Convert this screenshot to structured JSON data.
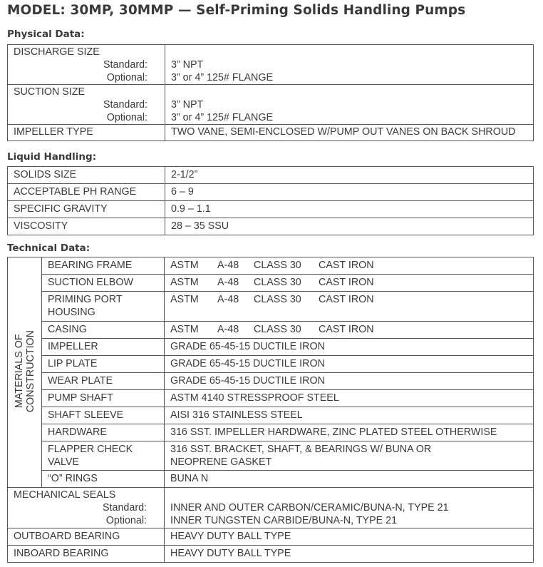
{
  "title": "MODEL:  30MP, 30MMP — Self-Priming Solids Handling Pumps",
  "physical": {
    "heading": "Physical Data:",
    "discharge": {
      "label": "DISCHARGE SIZE",
      "standard_label": "Standard:",
      "optional_label": "Optional:",
      "standard": "3” NPT",
      "optional": "3” or 4” 125# FLANGE"
    },
    "suction": {
      "label": "SUCTION SIZE",
      "standard_label": "Standard:",
      "optional_label": "Optional:",
      "standard": "3” NPT",
      "optional": "3” or 4” 125# FLANGE"
    },
    "impeller": {
      "label": "IMPELLER TYPE",
      "value": "TWO VANE, SEMI-ENCLOSED W/PUMP OUT VANES ON BACK SHROUD"
    }
  },
  "liquid": {
    "heading": "Liquid Handling:",
    "rows": [
      {
        "label": "SOLIDS SIZE",
        "value": "2-1/2”"
      },
      {
        "label": "ACCEPTABLE PH RANGE",
        "value": "6 – 9"
      },
      {
        "label": "SPECIFIC GRAVITY",
        "value": "0.9 – 1.1"
      },
      {
        "label": "VISCOSITY",
        "value": "28 – 35 SSU"
      }
    ]
  },
  "technical": {
    "heading": "Technical Data:",
    "materials_label_1": "MATERIALS OF",
    "materials_label_2": "CONSTRUCTION",
    "astm_rows": [
      {
        "label": "BEARING FRAME",
        "std": "ASTM",
        "spec": "A-48",
        "cls": "CLASS 30",
        "mat": "CAST IRON"
      },
      {
        "label": "SUCTION ELBOW",
        "std": "ASTM",
        "spec": "A-48",
        "cls": "CLASS 30",
        "mat": "CAST IRON"
      },
      {
        "label": "PRIMING PORT HOUSING",
        "std": "ASTM",
        "spec": "A-48",
        "cls": "CLASS 30",
        "mat": "CAST IRON"
      },
      {
        "label": "CASING",
        "std": "ASTM",
        "spec": "A-48",
        "cls": "CLASS 30",
        "mat": "CAST IRON"
      }
    ],
    "rows": [
      {
        "label": "IMPELLER",
        "value": "GRADE 65-45-15 DUCTILE IRON"
      },
      {
        "label": "LIP PLATE",
        "value": "GRADE 65-45-15 DUCTILE IRON"
      },
      {
        "label": "WEAR PLATE",
        "value": "GRADE 65-45-15 DUCTILE IRON"
      },
      {
        "label": "PUMP SHAFT",
        "value": "ASTM 4140 STRESSPROOF STEEL"
      },
      {
        "label": "SHAFT SLEEVE",
        "value": "AISI 316 STAINLESS STEEL"
      },
      {
        "label": "HARDWARE",
        "value": "316 SST. IMPELLER HARDWARE, ZINC PLATED STEEL OTHERWISE"
      },
      {
        "label": "FLAPPER CHECK VALVE",
        "value": "316 SST. BRACKET, SHAFT, & BEARINGS W/ BUNA OR NEOPRENE GASKET"
      },
      {
        "label": "“O” RINGS",
        "value": "BUNA N"
      }
    ],
    "seals": {
      "label": "MECHANICAL SEALS",
      "standard_label": "Standard:",
      "optional_label": "Optional:",
      "standard": "INNER AND OUTER CARBON/CERAMIC/BUNA-N, TYPE 21",
      "optional": "INNER TUNGSTEN CARBIDE/BUNA-N, TYPE 21"
    },
    "outboard": {
      "label": "OUTBOARD BEARING",
      "value": "HEAVY DUTY BALL TYPE"
    },
    "inboard": {
      "label": "INBOARD BEARING",
      "value": "HEAVY DUTY BALL TYPE"
    }
  }
}
